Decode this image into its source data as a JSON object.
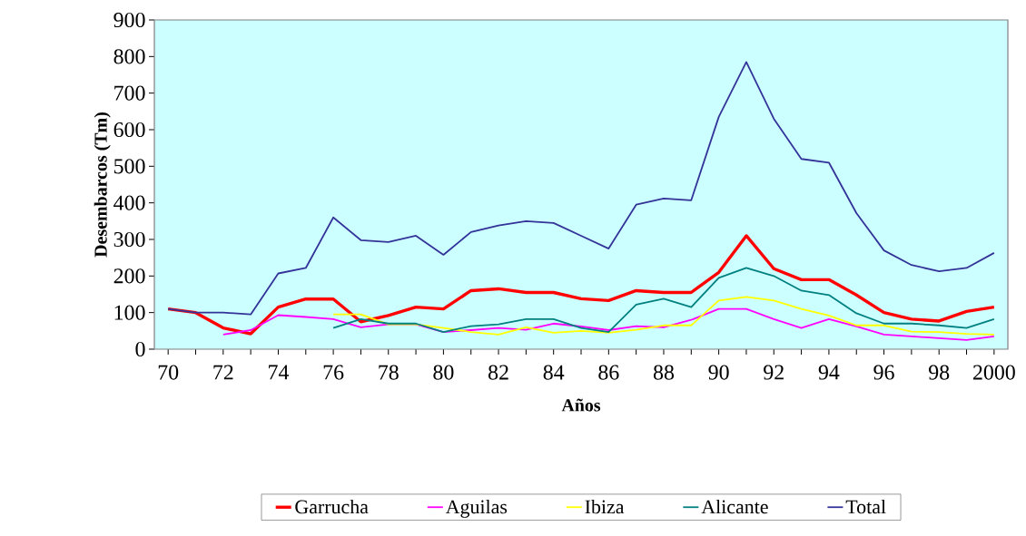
{
  "chart_data": {
    "type": "line",
    "xlabel": "Años",
    "ylabel": "Desembarcos (Tm)",
    "categories": [
      "70",
      null,
      "72",
      null,
      "74",
      null,
      "76",
      null,
      "78",
      null,
      "80",
      null,
      "82",
      null,
      "84",
      null,
      "86",
      null,
      "88",
      null,
      "90",
      null,
      "92",
      null,
      "94",
      null,
      "96",
      null,
      "98",
      null,
      "2000"
    ],
    "ylim": [
      0,
      900
    ],
    "yticks": [
      0,
      100,
      200,
      300,
      400,
      500,
      600,
      700,
      800,
      900
    ],
    "legend": "bottom",
    "marker": "none",
    "line_style": "solid",
    "series": [
      {
        "name": "Garrucha",
        "color": "#ff0000",
        "values": [
          110,
          100,
          58,
          42,
          115,
          137,
          137,
          75,
          92,
          115,
          110,
          160,
          165,
          155,
          155,
          138,
          133,
          160,
          155,
          155,
          210,
          310,
          220,
          190,
          190,
          148,
          100,
          82,
          77,
          103,
          115
        ]
      },
      {
        "name": "Aguilas",
        "color": "#ff00ff",
        "values": [
          null,
          null,
          40,
          52,
          93,
          88,
          82,
          60,
          68,
          68,
          47,
          52,
          58,
          53,
          70,
          62,
          52,
          63,
          60,
          80,
          110,
          110,
          82,
          58,
          82,
          62,
          40,
          35,
          30,
          25,
          35
        ]
      },
      {
        "name": "Ibiza",
        "color": "#ffff00",
        "values": [
          null,
          null,
          null,
          null,
          null,
          null,
          95,
          95,
          68,
          68,
          58,
          47,
          40,
          60,
          45,
          50,
          45,
          53,
          65,
          65,
          133,
          143,
          133,
          110,
          92,
          65,
          65,
          48,
          47,
          42,
          40
        ]
      },
      {
        "name": "Alicante",
        "color": "#008080",
        "values": [
          null,
          null,
          null,
          null,
          null,
          null,
          58,
          82,
          70,
          70,
          47,
          63,
          68,
          82,
          82,
          58,
          47,
          122,
          138,
          115,
          195,
          222,
          200,
          160,
          148,
          98,
          70,
          70,
          65,
          58,
          82
        ]
      },
      {
        "name": "Total",
        "color": "#333399",
        "values": [
          110,
          100,
          100,
          95,
          207,
          222,
          360,
          298,
          293,
          310,
          258,
          320,
          338,
          350,
          345,
          310,
          275,
          395,
          412,
          407,
          635,
          785,
          630,
          520,
          510,
          372,
          270,
          230,
          213,
          222,
          263
        ]
      }
    ]
  }
}
